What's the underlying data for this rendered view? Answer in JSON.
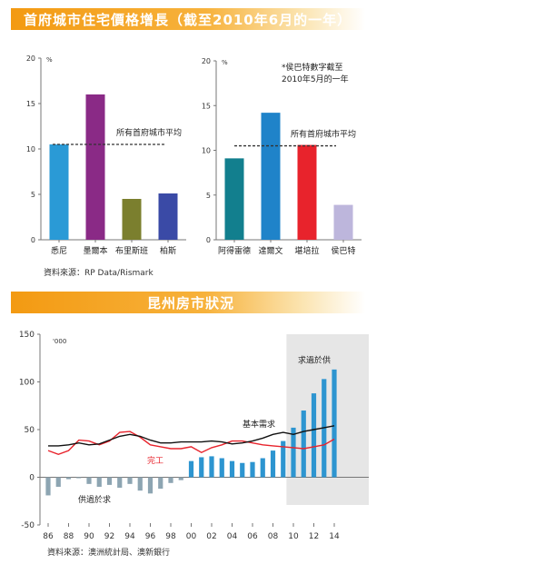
{
  "section1": {
    "title": "首府城市住宅價格增長（截至2010年6月的一年）"
  },
  "section2": {
    "title": "昆州房市狀況"
  },
  "source1": "資料來源：RP Data/Rismark",
  "source2": "資料來源：澳洲統計局、澳新銀行",
  "colors": {
    "banner": "#f39a12",
    "sydney": "#2a9ad6",
    "melbourne": "#8a2a86",
    "brisbane": "#7b7f2e",
    "perth": "#3a4aa6",
    "adelaide": "#127f8e",
    "darwin": "#1f83c9",
    "canberra": "#e8232c",
    "hobart": "#bdb6dc",
    "completions": "#e8232c",
    "underlying_demand": "#111111",
    "bar_positive": "#2d95d0",
    "bar_negative": "#8da5b2",
    "shade": "#e6e6e6"
  },
  "chart_data": [
    {
      "type": "bar",
      "unit": "%",
      "categories": [
        "悉尼",
        "墨爾本",
        "布里斯班",
        "柏斯"
      ],
      "values": [
        10.5,
        16.0,
        4.5,
        5.1
      ],
      "ylim": [
        0,
        20
      ],
      "yticks": [
        0,
        5,
        10,
        15,
        20
      ],
      "reference_line": {
        "label": "所有首府城市平均",
        "value": 10.5
      },
      "grid": false
    },
    {
      "type": "bar",
      "unit": "%",
      "categories": [
        "阿得雷德",
        "達爾文",
        "堪培拉",
        "侯巴特"
      ],
      "values": [
        9.1,
        14.2,
        10.6,
        3.9
      ],
      "ylim": [
        0,
        20
      ],
      "yticks": [
        0,
        5,
        10,
        15,
        20
      ],
      "reference_line": {
        "label": "所有首府城市平均",
        "value": 10.5
      },
      "note": "*侯巴特數字截至2010年5月的一年",
      "grid": false
    },
    {
      "type": "bar",
      "unit": "'000",
      "x": [
        1986,
        1987,
        1988,
        1989,
        1990,
        1991,
        1992,
        1993,
        1994,
        1995,
        1996,
        1997,
        1998,
        1999,
        2000,
        2001,
        2002,
        2003,
        2004,
        2005,
        2006,
        2007,
        2008,
        2009,
        2010,
        2011,
        2012,
        2013,
        2014
      ],
      "xticks": [
        "86",
        "88",
        "90",
        "92",
        "94",
        "96",
        "98",
        "00",
        "02",
        "04",
        "06",
        "08",
        "10",
        "12",
        "14"
      ],
      "ylim": [
        -50,
        150
      ],
      "yticks": [
        -50,
        0,
        50,
        100,
        150
      ],
      "shaded_region": {
        "from": 2009.5,
        "to": 2015,
        "label": "求過於供"
      },
      "series": [
        {
          "name": "供過於求",
          "kind": "bar",
          "values": [
            -19,
            -10,
            -2,
            -1,
            -7,
            -10,
            -8,
            -11,
            -7,
            -14,
            -17,
            -12,
            -6,
            -3,
            17,
            21,
            22,
            20,
            17,
            15,
            16,
            20,
            28,
            38,
            52,
            70,
            88,
            103,
            113
          ]
        },
        {
          "name": "完工",
          "kind": "line",
          "values": [
            28,
            24,
            28,
            39,
            38,
            34,
            38,
            47,
            48,
            42,
            34,
            32,
            30,
            30,
            32,
            26,
            31,
            34,
            38,
            38,
            36,
            34,
            33,
            32,
            31,
            30,
            32,
            34,
            40
          ]
        },
        {
          "name": "基本需求",
          "kind": "line",
          "values": [
            33,
            33,
            34,
            36,
            34,
            35,
            39,
            43,
            45,
            43,
            39,
            36,
            36,
            37,
            37,
            37,
            38,
            37,
            35,
            36,
            38,
            41,
            45,
            47,
            45,
            48,
            50,
            52,
            54
          ]
        }
      ],
      "grid": false
    }
  ]
}
